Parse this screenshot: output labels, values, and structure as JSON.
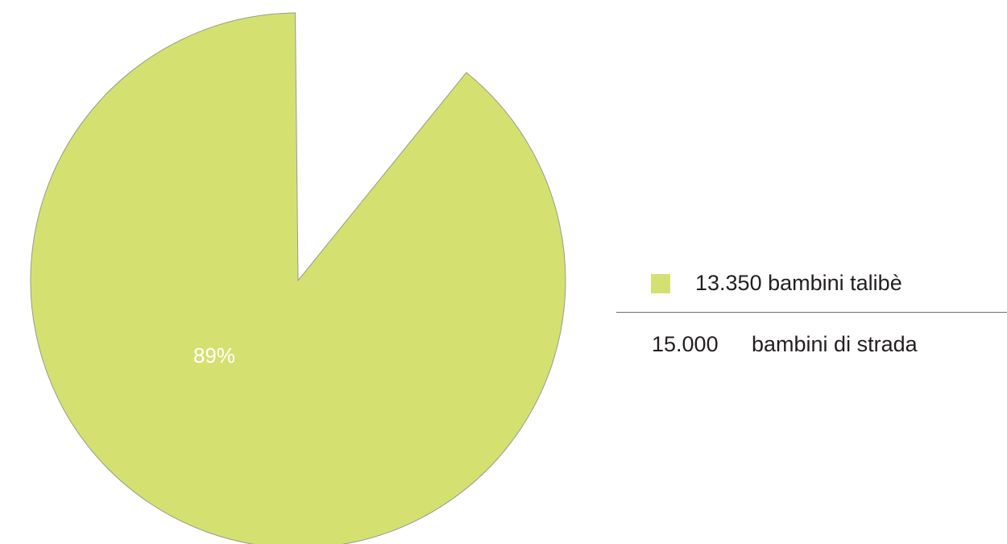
{
  "chart_data": {
    "type": "pie",
    "slices": [
      {
        "value": 13350,
        "label": "89%",
        "color": "#d4e170",
        "outline": "#999a8f"
      },
      {
        "value": 1650,
        "label": "",
        "color": "#ffffff"
      }
    ],
    "total": 15000,
    "start_angle_deg": 39,
    "legend": {
      "placement": "right",
      "items": [
        {
          "count": "13.350",
          "label": "bambini talibè",
          "color": "#d4e170"
        }
      ],
      "total_count": "15.000",
      "total_label": "bambini di strada"
    }
  }
}
